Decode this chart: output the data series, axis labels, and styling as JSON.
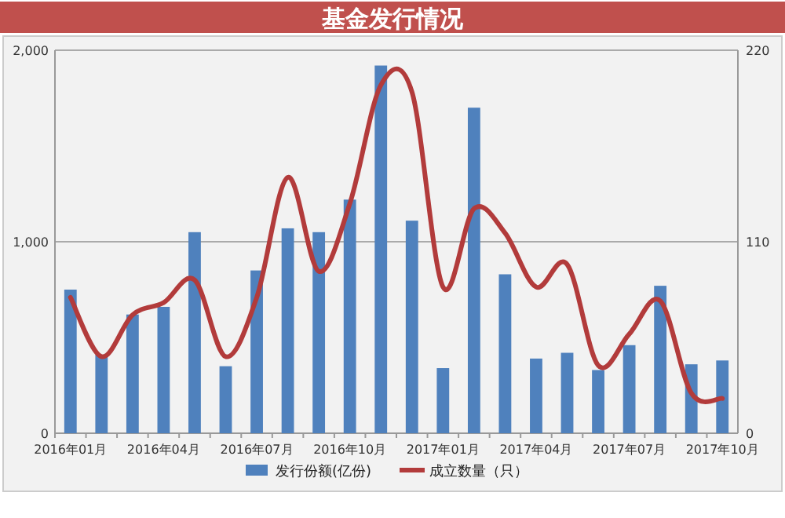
{
  "chart_data": {
    "type": "bar",
    "title": "基金发行情况",
    "categories": [
      "2016年01月",
      null,
      null,
      "2016年04月",
      null,
      null,
      "2016年07月",
      null,
      null,
      "2016年10月",
      null,
      null,
      "2017年01月",
      null,
      null,
      "2017年04月",
      null,
      null,
      "2017年07月",
      null,
      null,
      "2017年10月"
    ],
    "series": [
      {
        "name": "发行份额(亿份)",
        "color": "#4f81bd",
        "values": [
          750,
          410,
          620,
          660,
          1050,
          350,
          850,
          1070,
          1050,
          1220,
          1920,
          1110,
          340,
          1700,
          830,
          390,
          420,
          330,
          460,
          770,
          360,
          380
        ]
      },
      {
        "name": "成立数量（只）",
        "type": "line",
        "axis": "y2",
        "color": "#b23b3b",
        "values": [
          78,
          44,
          68,
          75,
          88,
          44,
          78,
          147,
          93,
          132,
          200,
          196,
          84,
          129,
          115,
          84,
          97,
          39,
          57,
          76,
          23,
          20
        ]
      }
    ],
    "ylim": [
      0,
      2000
    ],
    "yticks": [
      0,
      {
        "value": 1000,
        "label": "1,000"
      },
      {
        "value": 2000,
        "label": "2,000"
      }
    ],
    "y2lim": [
      0,
      220
    ],
    "y2ticks": [
      0,
      110,
      220
    ],
    "grid": "y",
    "legend": "bottom"
  }
}
